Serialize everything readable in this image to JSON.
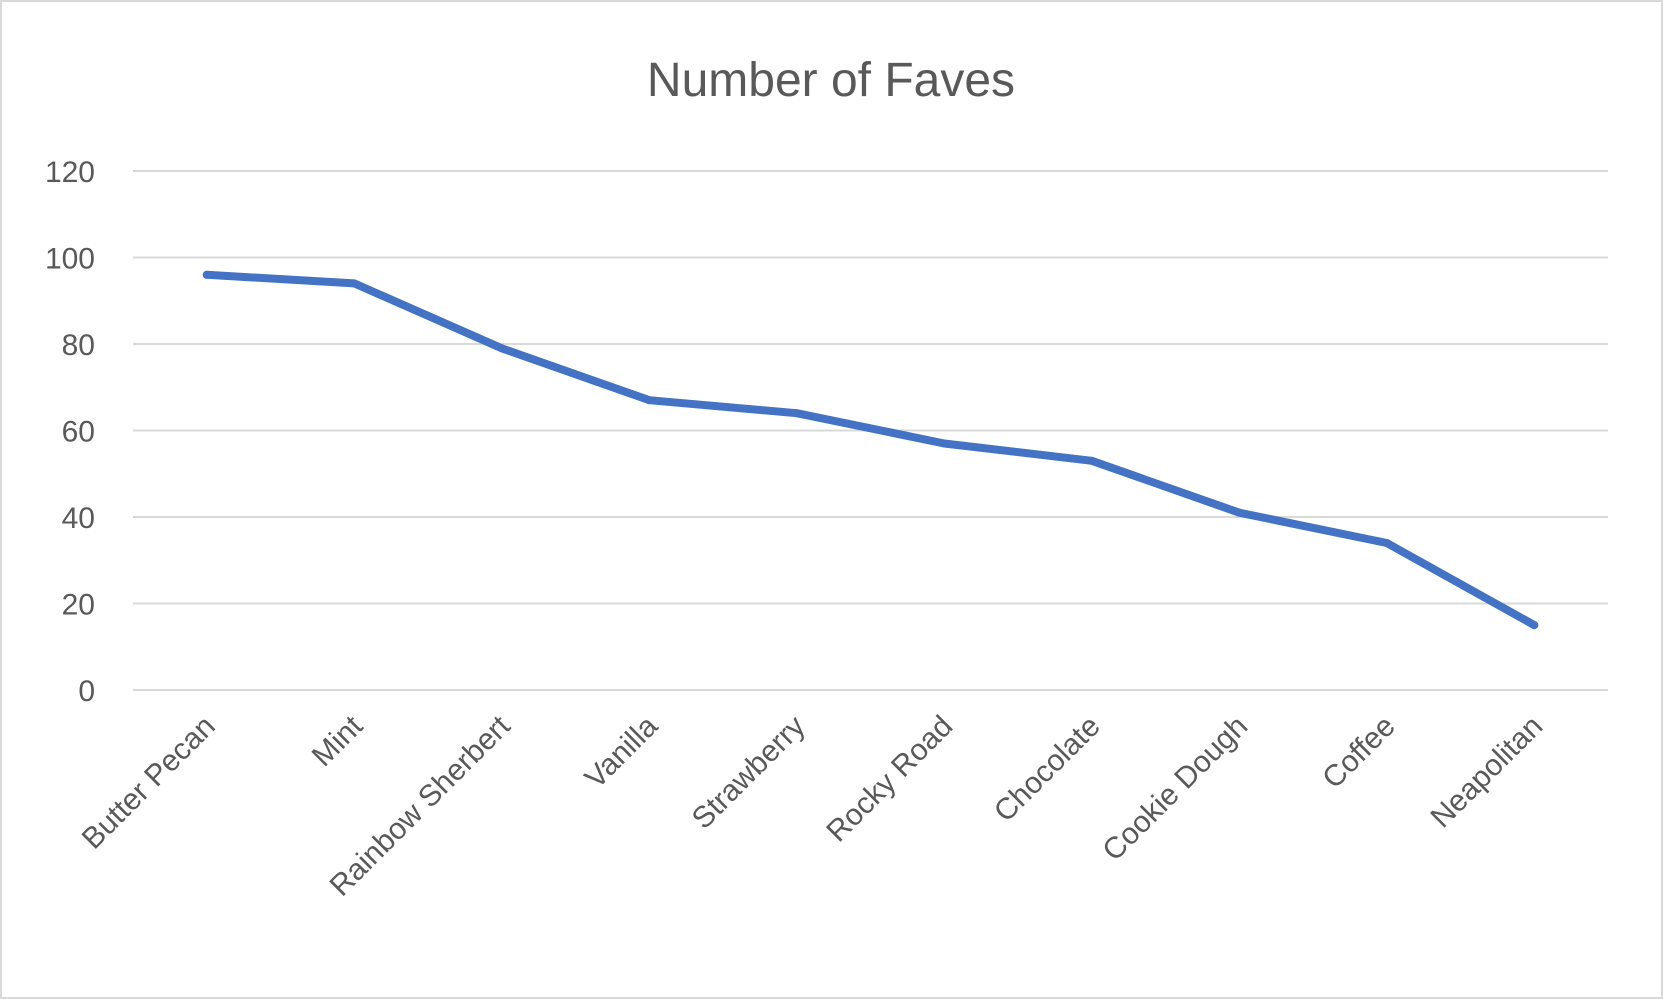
{
  "chart_data": {
    "type": "line",
    "title": "Number of Faves",
    "xlabel": "",
    "ylabel": "",
    "categories": [
      "Butter Pecan",
      "Mint",
      "Rainbow Sherbert",
      "Vanilla",
      "Strawberry",
      "Rocky Road",
      "Chocolate",
      "Cookie Dough",
      "Coffee",
      "Neapolitan"
    ],
    "series": [
      {
        "values": [
          96,
          94,
          79,
          67,
          64,
          57,
          53,
          41,
          34,
          15
        ],
        "color": "#4472C4"
      }
    ],
    "ylim": [
      0,
      120
    ],
    "yticks": [
      "0",
      "20",
      "40",
      "60",
      "80",
      "100",
      "120"
    ],
    "grid": true,
    "legend": "none"
  }
}
